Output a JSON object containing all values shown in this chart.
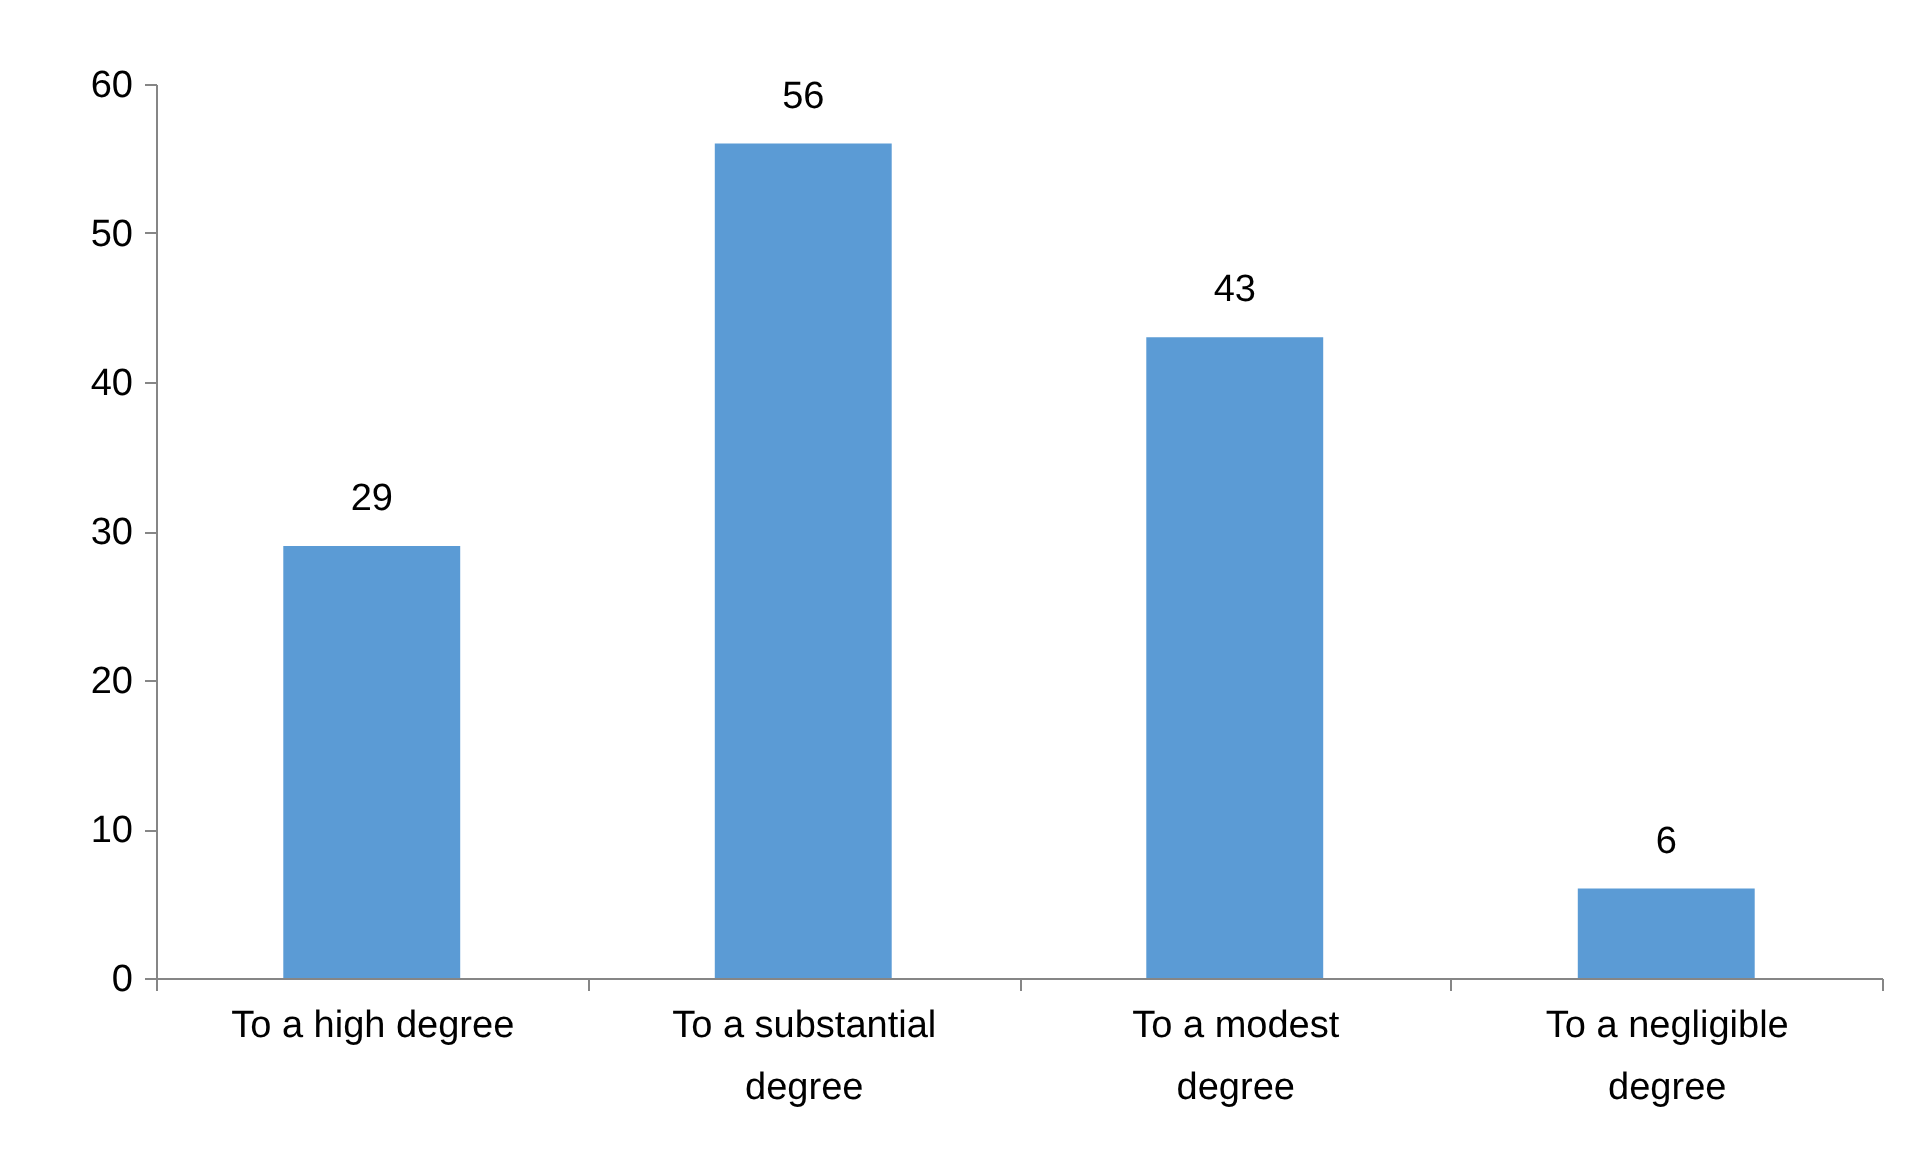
{
  "chart_data": {
    "type": "bar",
    "categories": [
      "To a high degree",
      "To a substantial degree",
      "To a modest degree",
      "To a negligible degree"
    ],
    "values": [
      29,
      56,
      43,
      6
    ],
    "color": "#5b9bd5",
    "ylim": [
      0,
      60
    ],
    "yticks": [
      0,
      10,
      20,
      30,
      40,
      50,
      60
    ],
    "data_labels": true
  }
}
